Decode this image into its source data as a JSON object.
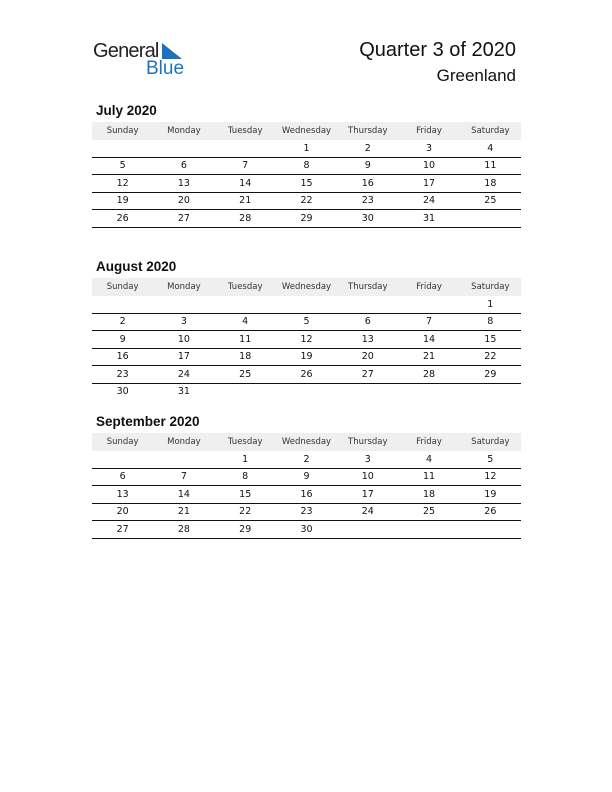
{
  "logo": {
    "text1": "General",
    "text2": "Blue",
    "accent": "#1a73c1"
  },
  "header": {
    "title": "Quarter 3 of 2020",
    "country": "Greenland"
  },
  "weekdays": [
    "Sunday",
    "Monday",
    "Tuesday",
    "Wednesday",
    "Thursday",
    "Friday",
    "Saturday"
  ],
  "months": [
    {
      "title": "July 2020",
      "weeks": [
        [
          "",
          "",
          "",
          "1",
          "2",
          "3",
          "4"
        ],
        [
          "5",
          "6",
          "7",
          "8",
          "9",
          "10",
          "11"
        ],
        [
          "12",
          "13",
          "14",
          "15",
          "16",
          "17",
          "18"
        ],
        [
          "19",
          "20",
          "21",
          "22",
          "23",
          "24",
          "25"
        ],
        [
          "26",
          "27",
          "28",
          "29",
          "30",
          "31",
          ""
        ]
      ]
    },
    {
      "title": "August 2020",
      "weeks": [
        [
          "",
          "",
          "",
          "",
          "",
          "",
          "1"
        ],
        [
          "2",
          "3",
          "4",
          "5",
          "6",
          "7",
          "8"
        ],
        [
          "9",
          "10",
          "11",
          "12",
          "13",
          "14",
          "15"
        ],
        [
          "16",
          "17",
          "18",
          "19",
          "20",
          "21",
          "22"
        ],
        [
          "23",
          "24",
          "25",
          "26",
          "27",
          "28",
          "29"
        ],
        [
          "30",
          "31",
          "",
          "",
          "",
          "",
          ""
        ]
      ]
    },
    {
      "title": "September 2020",
      "weeks": [
        [
          "",
          "",
          "1",
          "2",
          "3",
          "4",
          "5"
        ],
        [
          "6",
          "7",
          "8",
          "9",
          "10",
          "11",
          "12"
        ],
        [
          "13",
          "14",
          "15",
          "16",
          "17",
          "18",
          "19"
        ],
        [
          "20",
          "21",
          "22",
          "23",
          "24",
          "25",
          "26"
        ],
        [
          "27",
          "28",
          "29",
          "30",
          "",
          "",
          ""
        ]
      ]
    }
  ]
}
